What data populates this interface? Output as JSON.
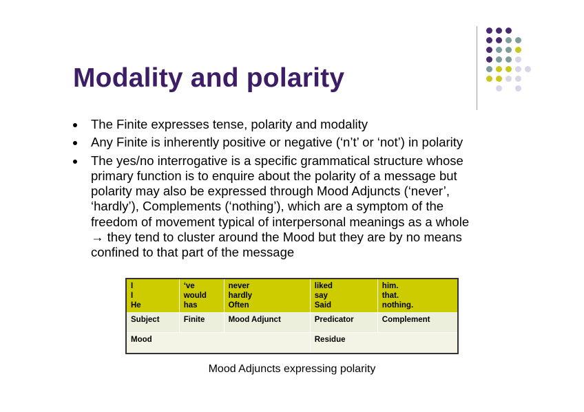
{
  "slide": {
    "title": "Modality and polarity",
    "bullets": [
      [
        "The Finite expresses tense, polarity and modality"
      ],
      [
        "Any Finite is inherently positive or negative (‘n’t’ or ‘not’) in polarity"
      ],
      [
        "The yes/no interrogative is a specific grammatical structure whose",
        "primary function is to enquire about the polarity of a message but",
        "polarity may also be expressed through Mood Adjuncts (‘never’,",
        "‘hardly’), Complements (‘nothing’), which are a symptom of the",
        "freedom of movement typical of interpersonal meanings as a whole",
        "→ they tend to cluster around the Mood but they are by no means",
        "confined to that part of the message"
      ]
    ],
    "table": {
      "examples": [
        [
          "I",
          "I",
          "He"
        ],
        [
          "‘ve",
          "would",
          "has"
        ],
        [
          "never",
          "hardly",
          "Often"
        ],
        [
          "liked",
          "say",
          "Said"
        ],
        [
          "him.",
          "that.",
          "nothing."
        ]
      ],
      "functions": [
        "Subject",
        "Finite",
        "Mood Adjunct",
        "Predicator",
        "Complement"
      ],
      "groups": [
        "Mood",
        "Residue"
      ]
    },
    "caption": "Mood Adjuncts expressing polarity",
    "decoration": {
      "icon": "dot-grid-decoration",
      "colors": {
        "purple": "#4a2a6e",
        "teal": "#7f9c9c",
        "olive": "#c8c81e",
        "lavender": "#d8d6e6"
      }
    }
  }
}
